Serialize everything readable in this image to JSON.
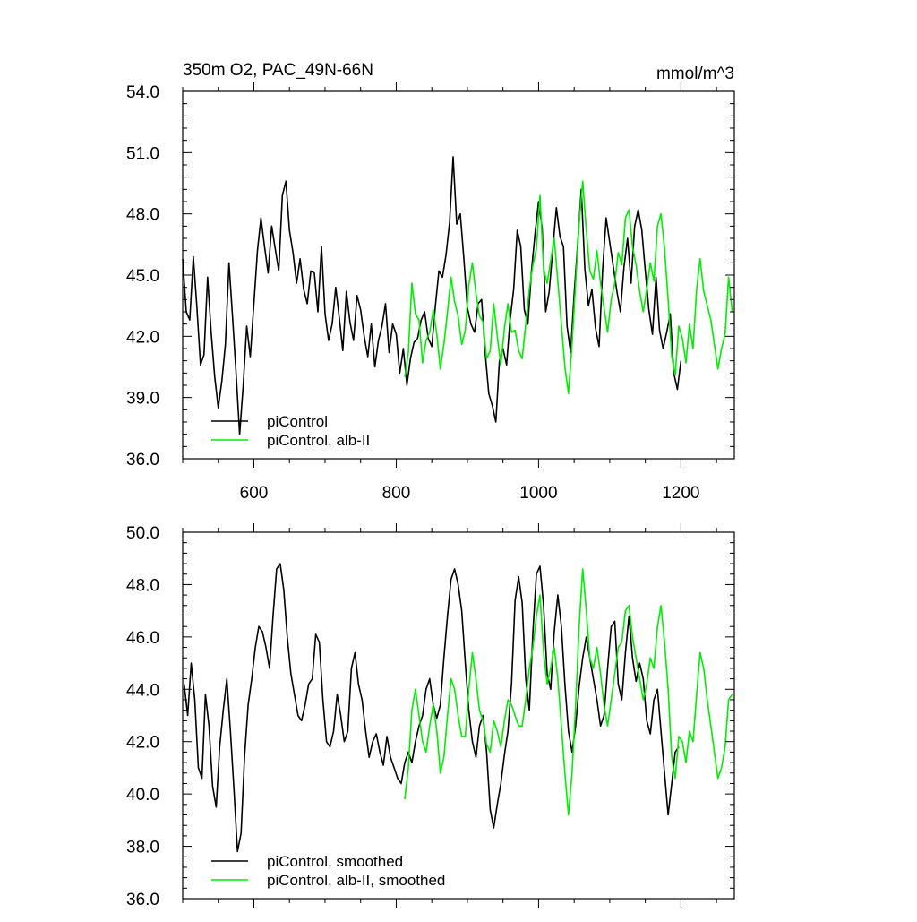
{
  "chart_data": [
    {
      "type": "line",
      "title": "350m O2, PAC_49N-66N",
      "units_label": "mmol/m^3",
      "xlim": [
        500,
        1275
      ],
      "ylim": [
        36.0,
        54.0
      ],
      "x_ticks": [
        600,
        800,
        1000,
        1200
      ],
      "x_tick_labels": [
        "600",
        "800",
        "1000",
        "1200"
      ],
      "y_ticks": [
        36.0,
        39.0,
        42.0,
        45.0,
        48.0,
        51.0,
        54.0
      ],
      "y_tick_labels": [
        "36.0",
        "39.0",
        "42.0",
        "45.0",
        "48.0",
        "51.0",
        "54.0"
      ],
      "grid": false,
      "legend_position": "bottom-left",
      "series": [
        {
          "name": "piControl",
          "color": "#000000",
          "x": [
            500,
            505,
            510,
            515,
            520,
            525,
            530,
            535,
            540,
            545,
            550,
            555,
            560,
            565,
            570,
            575,
            580,
            585,
            590,
            595,
            600,
            605,
            610,
            615,
            620,
            625,
            630,
            635,
            640,
            645,
            650,
            655,
            660,
            665,
            670,
            675,
            680,
            685,
            690,
            695,
            700,
            705,
            710,
            715,
            720,
            725,
            730,
            735,
            740,
            745,
            750,
            755,
            760,
            765,
            770,
            775,
            780,
            785,
            790,
            795,
            800,
            805,
            810,
            815,
            820,
            825,
            830,
            835,
            840,
            845,
            850,
            855,
            860,
            865,
            870,
            875,
            880,
            885,
            890,
            895,
            900,
            905,
            910,
            915,
            920,
            925,
            930,
            935,
            940,
            945,
            950,
            955,
            960,
            965,
            970,
            975,
            980,
            985,
            990,
            995,
            1000,
            1005,
            1010,
            1015,
            1020,
            1025,
            1030,
            1035,
            1040,
            1045,
            1050,
            1055,
            1060,
            1065,
            1070,
            1075,
            1080,
            1085,
            1090,
            1095,
            1100,
            1105,
            1110,
            1115,
            1120,
            1125,
            1130,
            1135,
            1140,
            1145,
            1150,
            1155,
            1160,
            1165,
            1170,
            1175,
            1180,
            1185,
            1190,
            1195,
            1200
          ],
          "values": [
            45.8,
            43.2,
            42.8,
            45.9,
            43.4,
            40.6,
            41.1,
            44.9,
            42.2,
            40.0,
            38.5,
            39.8,
            41.6,
            45.6,
            43.0,
            40.2,
            37.2,
            39.6,
            42.5,
            41.0,
            43.6,
            46.2,
            47.8,
            46.4,
            45.1,
            47.4,
            46.3,
            45.2,
            48.9,
            49.6,
            47.2,
            46.1,
            44.6,
            45.8,
            44.3,
            43.6,
            45.2,
            45.1,
            43.2,
            46.4,
            43.1,
            41.8,
            42.6,
            44.4,
            42.9,
            41.3,
            44.2,
            42.7,
            41.8,
            44.0,
            43.3,
            42.0,
            41.0,
            42.6,
            40.5,
            41.8,
            42.5,
            43.6,
            41.2,
            42.6,
            42.1,
            40.2,
            41.4,
            39.6,
            40.9,
            41.7,
            41.9,
            42.8,
            43.2,
            41.9,
            41.5,
            43.5,
            45.2,
            44.9,
            46.0,
            47.6,
            50.8,
            47.5,
            48.0,
            45.8,
            43.4,
            42.6,
            42.2,
            43.6,
            43.8,
            41.2,
            39.2,
            38.6,
            37.8,
            40.8,
            41.4,
            40.6,
            42.8,
            44.3,
            47.2,
            46.4,
            43.3,
            42.6,
            45.2,
            47.0,
            48.6,
            47.3,
            43.2,
            44.2,
            46.3,
            48.3,
            46.9,
            46.4,
            42.5,
            41.2,
            44.1,
            46.5,
            49.2,
            45.3,
            43.5,
            44.3,
            42.4,
            41.5,
            45.3,
            47.8,
            46.6,
            45.4,
            44.2,
            43.2,
            45.4,
            46.8,
            44.6,
            47.4,
            48.2,
            47.2,
            45.2,
            43.3,
            42.1,
            44.9,
            42.3,
            41.4,
            42.2,
            43.1,
            40.2,
            39.4,
            40.8
          ]
        },
        {
          "name": "piControl, alb-II",
          "color": "#00ee00",
          "x": [
            812,
            817,
            822,
            827,
            832,
            837,
            842,
            847,
            852,
            857,
            862,
            867,
            872,
            877,
            882,
            887,
            892,
            897,
            902,
            907,
            912,
            917,
            922,
            927,
            932,
            937,
            942,
            947,
            952,
            957,
            962,
            967,
            972,
            977,
            982,
            987,
            992,
            997,
            1002,
            1007,
            1012,
            1017,
            1022,
            1027,
            1032,
            1037,
            1042,
            1047,
            1052,
            1057,
            1062,
            1067,
            1072,
            1077,
            1082,
            1087,
            1092,
            1097,
            1102,
            1107,
            1112,
            1117,
            1122,
            1127,
            1132,
            1137,
            1142,
            1147,
            1152,
            1157,
            1162,
            1167,
            1172,
            1177,
            1182,
            1187,
            1192,
            1197,
            1202,
            1207,
            1212,
            1217,
            1222,
            1227,
            1232,
            1237,
            1242,
            1247,
            1252,
            1257,
            1262,
            1267,
            1272
          ],
          "values": [
            40.0,
            41.2,
            44.6,
            43.1,
            42.8,
            40.7,
            41.8,
            42.2,
            43.3,
            42.1,
            40.4,
            41.6,
            43.2,
            44.9,
            43.7,
            43.0,
            41.6,
            42.3,
            44.5,
            45.6,
            44.1,
            43.0,
            42.7,
            40.9,
            41.3,
            43.6,
            42.0,
            40.6,
            42.4,
            43.6,
            42.2,
            42.3,
            41.3,
            40.9,
            42.6,
            44.3,
            45.5,
            46.3,
            48.9,
            45.3,
            44.6,
            45.7,
            46.8,
            44.7,
            42.6,
            40.5,
            39.2,
            41.6,
            44.6,
            47.5,
            49.6,
            47.2,
            45.2,
            44.8,
            46.2,
            44.6,
            43.4,
            42.2,
            43.8,
            44.6,
            46.1,
            45.5,
            47.8,
            48.2,
            46.4,
            45.5,
            44.2,
            43.2,
            44.3,
            45.6,
            44.7,
            47.4,
            48.0,
            46.3,
            43.8,
            41.0,
            40.1,
            42.5,
            41.9,
            40.7,
            42.6,
            41.4,
            44.3,
            45.8,
            44.2,
            43.5,
            42.8,
            41.6,
            40.4,
            41.4,
            42.1,
            44.9,
            43.2
          ]
        }
      ]
    },
    {
      "type": "line",
      "title": "",
      "xlim": [
        500,
        1275
      ],
      "ylim": [
        36.0,
        50.0
      ],
      "x_ticks": [
        600,
        800,
        1000,
        1200
      ],
      "x_tick_labels": [],
      "y_ticks": [
        36.0,
        38.0,
        40.0,
        42.0,
        44.0,
        46.0,
        48.0,
        50.0
      ],
      "y_tick_labels": [
        "36.0",
        "38.0",
        "40.0",
        "42.0",
        "44.0",
        "46.0",
        "48.0",
        "50.0"
      ],
      "grid": false,
      "legend_position": "bottom-left",
      "series": [
        {
          "name": "piControl, smoothed",
          "color": "#000000",
          "x": [
            502,
            507,
            512,
            517,
            522,
            527,
            532,
            537,
            542,
            547,
            552,
            557,
            562,
            567,
            572,
            577,
            582,
            587,
            592,
            597,
            602,
            607,
            612,
            617,
            622,
            627,
            632,
            637,
            642,
            647,
            652,
            657,
            662,
            667,
            672,
            677,
            682,
            687,
            692,
            697,
            702,
            707,
            712,
            717,
            722,
            727,
            732,
            737,
            742,
            747,
            752,
            757,
            762,
            767,
            772,
            777,
            782,
            787,
            792,
            797,
            802,
            807,
            812,
            817,
            822,
            827,
            832,
            837,
            842,
            847,
            852,
            857,
            862,
            867,
            872,
            877,
            882,
            887,
            892,
            897,
            902,
            907,
            912,
            917,
            922,
            927,
            932,
            937,
            942,
            947,
            952,
            957,
            962,
            967,
            972,
            977,
            982,
            987,
            992,
            997,
            1002,
            1007,
            1012,
            1017,
            1022,
            1027,
            1032,
            1037,
            1042,
            1047,
            1052,
            1057,
            1062,
            1067,
            1072,
            1077,
            1082,
            1087,
            1092,
            1097,
            1102,
            1107,
            1112,
            1117,
            1122,
            1127,
            1132,
            1137,
            1142,
            1147,
            1152,
            1157,
            1162,
            1167,
            1172,
            1177,
            1182,
            1187,
            1192,
            1197
          ],
          "values": [
            44.2,
            43.0,
            45.0,
            43.6,
            41.0,
            40.6,
            43.8,
            42.6,
            40.3,
            39.5,
            41.8,
            43.2,
            44.4,
            42.4,
            40.2,
            37.8,
            38.5,
            41.5,
            43.4,
            44.4,
            45.6,
            46.4,
            46.2,
            45.6,
            44.8,
            46.8,
            48.6,
            48.8,
            47.8,
            46.0,
            44.6,
            43.8,
            43.0,
            42.8,
            43.4,
            44.2,
            44.4,
            46.1,
            45.8,
            43.6,
            42.0,
            41.8,
            42.4,
            43.8,
            43.0,
            42.0,
            42.4,
            44.8,
            45.4,
            44.2,
            43.6,
            42.4,
            41.4,
            42.0,
            42.3,
            41.6,
            41.1,
            42.2,
            41.4,
            41.0,
            40.6,
            40.4,
            41.2,
            41.6,
            41.2,
            42.0,
            42.6,
            43.0,
            44.0,
            44.4,
            43.4,
            42.9,
            43.4,
            45.2,
            46.8,
            48.2,
            48.6,
            48.0,
            47.0,
            45.0,
            43.2,
            42.0,
            41.4,
            42.6,
            43.0,
            41.6,
            39.4,
            38.7,
            39.6,
            40.4,
            41.5,
            42.4,
            44.2,
            47.4,
            48.3,
            47.3,
            44.4,
            43.2,
            46.2,
            48.4,
            48.7,
            47.2,
            44.6,
            44.0,
            46.2,
            47.6,
            46.4,
            44.2,
            42.4,
            41.6,
            42.6,
            44.1,
            45.2,
            46.0,
            45.2,
            44.4,
            43.6,
            42.6,
            43.0,
            44.8,
            46.4,
            46.6,
            44.2,
            43.6,
            45.4,
            46.8,
            45.2,
            44.3,
            45.0,
            44.4,
            42.8,
            42.3,
            43.6,
            44.0,
            42.4,
            40.8,
            39.2,
            40.4,
            41.6,
            41.8
          ]
        },
        {
          "name": "piControl, alb-II, smoothed",
          "color": "#00ee00",
          "x": [
            812,
            817,
            822,
            827,
            832,
            837,
            842,
            847,
            852,
            857,
            862,
            867,
            872,
            877,
            882,
            887,
            892,
            897,
            902,
            907,
            912,
            917,
            922,
            927,
            932,
            937,
            942,
            947,
            952,
            957,
            962,
            967,
            972,
            977,
            982,
            987,
            992,
            997,
            1002,
            1007,
            1012,
            1017,
            1022,
            1027,
            1032,
            1037,
            1042,
            1047,
            1052,
            1057,
            1062,
            1067,
            1072,
            1077,
            1082,
            1087,
            1092,
            1097,
            1102,
            1107,
            1112,
            1117,
            1122,
            1127,
            1132,
            1137,
            1142,
            1147,
            1152,
            1157,
            1162,
            1167,
            1172,
            1177,
            1182,
            1187,
            1192,
            1197,
            1202,
            1207,
            1212,
            1217,
            1222,
            1227,
            1232,
            1237,
            1242,
            1247,
            1252,
            1257,
            1262,
            1267,
            1272
          ],
          "values": [
            39.8,
            41.0,
            43.2,
            44.0,
            43.0,
            42.0,
            41.6,
            42.6,
            43.4,
            42.4,
            40.8,
            41.4,
            43.0,
            44.4,
            44.0,
            43.0,
            42.2,
            42.2,
            44.0,
            45.4,
            44.4,
            43.2,
            42.8,
            41.9,
            41.6,
            42.8,
            42.4,
            41.8,
            42.8,
            43.6,
            43.4,
            43.0,
            42.6,
            42.6,
            43.6,
            44.8,
            45.6,
            46.8,
            47.6,
            45.4,
            44.2,
            44.8,
            45.6,
            44.4,
            42.6,
            40.8,
            39.2,
            40.8,
            43.4,
            46.4,
            48.6,
            47.0,
            45.2,
            44.8,
            45.6,
            44.6,
            43.4,
            42.6,
            43.6,
            44.6,
            45.6,
            45.8,
            47.0,
            47.2,
            46.0,
            45.2,
            44.4,
            43.6,
            44.2,
            45.2,
            44.8,
            46.4,
            47.2,
            45.8,
            44.0,
            41.4,
            40.6,
            42.2,
            42.0,
            41.2,
            42.4,
            42.0,
            43.8,
            45.4,
            44.8,
            43.6,
            42.6,
            41.6,
            40.6,
            41.0,
            41.8,
            43.6,
            43.8
          ]
        }
      ]
    }
  ]
}
